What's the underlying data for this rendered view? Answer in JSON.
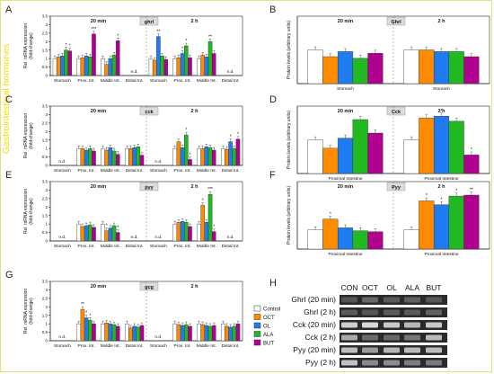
{
  "figure": {
    "side_title": "Gastrointestinal hormones",
    "side_title_color": "#f2dc00",
    "legend": [
      "Control",
      "OCT",
      "OL",
      "ALA",
      "BUT"
    ],
    "colors": [
      "#ffffff",
      "#ff8c00",
      "#1e7cf0",
      "#22b822",
      "#b0008f"
    ],
    "blot": {
      "letter": "H",
      "columns": [
        "CON",
        "OCT",
        "OL",
        "ALA",
        "BUT"
      ],
      "rows": [
        "Ghrl (20 min)",
        "Ghrl (2 h)",
        "Cck (20 min)",
        "Cck (2 h)",
        "Pyy (20 min)",
        "Pyy (2 h)"
      ]
    }
  },
  "chart_data": [
    {
      "panel": "A",
      "type": "bar",
      "gene": "ghrl",
      "ylabel": "Rel. mRNA expression\n(fold-change)",
      "ylim": [
        0,
        3.5
      ],
      "ticks": [
        0,
        0.5,
        1,
        1.5,
        2,
        2.5,
        3,
        3.5
      ],
      "time_labels": [
        "20 min",
        "2 h"
      ],
      "categories": [
        "Stomach",
        "Prox. Int.",
        "Middle Int.",
        "Distal Int.",
        "Stomach",
        "Prox. Int.",
        "Middle Int.",
        "Distal Int."
      ],
      "series": [
        {
          "name": "Control",
          "values": [
            1,
            1,
            1,
            null,
            1,
            1,
            1,
            null
          ]
        },
        {
          "name": "OCT",
          "values": [
            1.1,
            1.05,
            0.65,
            null,
            0.9,
            1.05,
            1.2,
            null
          ]
        },
        {
          "name": "OL",
          "values": [
            1.15,
            1.15,
            1.0,
            null,
            2.3,
            1.3,
            1.1,
            null
          ]
        },
        {
          "name": "ALA",
          "values": [
            1.5,
            1.1,
            1.2,
            null,
            1.15,
            1.75,
            2.0,
            null
          ]
        },
        {
          "name": "BUT",
          "values": [
            1.45,
            2.45,
            2.05,
            null,
            0.95,
            1.05,
            1.3,
            null
          ]
        }
      ],
      "nd": [
        "n.d.",
        "n.d."
      ],
      "marks": [
        {
          "i": 0,
          "s": 3,
          "text": "*"
        },
        {
          "i": 0,
          "s": 4,
          "text": "*"
        },
        {
          "i": 1,
          "s": 4,
          "text": "***"
        },
        {
          "i": 2,
          "s": 4,
          "text": "*"
        },
        {
          "i": 4,
          "s": 2,
          "text": "**"
        },
        {
          "i": 5,
          "s": 2,
          "text": "*"
        },
        {
          "i": 5,
          "s": 3,
          "text": "*"
        },
        {
          "i": 6,
          "s": 3,
          "text": "**"
        }
      ]
    },
    {
      "panel": "B",
      "type": "bar",
      "gene": "Ghrl",
      "ylabel": "Protein levels (arbitrary units)",
      "ylim": [
        0,
        2
      ],
      "ticks": [],
      "time_labels": [
        "20 min",
        "2 h"
      ],
      "categories": [
        "Stomach",
        "Stomach"
      ],
      "series": [
        {
          "name": "Control",
          "values": [
            1.0,
            1.0
          ]
        },
        {
          "name": "OCT",
          "values": [
            0.8,
            1.0
          ]
        },
        {
          "name": "OL",
          "values": [
            0.95,
            0.95
          ]
        },
        {
          "name": "ALA",
          "values": [
            0.75,
            0.95
          ]
        },
        {
          "name": "BUT",
          "values": [
            0.9,
            0.8
          ]
        }
      ],
      "nd": [],
      "marks": []
    },
    {
      "panel": "C",
      "type": "bar",
      "gene": "cck",
      "ylabel": "Rel. mRNA expression\n(fold-change)",
      "ylim": [
        0,
        3.5
      ],
      "ticks": [
        0,
        0.5,
        1,
        1.5,
        2,
        2.5,
        3,
        3.5
      ],
      "time_labels": [
        "20 min",
        "2 h"
      ],
      "categories": [
        "Stomach",
        "Prox. Int.",
        "Middle Int.",
        "Distal Int.",
        "Stomach",
        "Prox. Int.",
        "Middle Int.",
        "Distal Int."
      ],
      "series": [
        {
          "name": "Control",
          "values": [
            null,
            1,
            1,
            1,
            null,
            1,
            1,
            1
          ]
        },
        {
          "name": "OCT",
          "values": [
            null,
            1.0,
            0.9,
            1.0,
            null,
            1.4,
            1.0,
            0.95
          ]
        },
        {
          "name": "OL",
          "values": [
            null,
            0.9,
            1.05,
            1.05,
            null,
            1.05,
            1.1,
            1.4
          ]
        },
        {
          "name": "ALA",
          "values": [
            null,
            1.0,
            0.85,
            1.1,
            null,
            1.8,
            1.05,
            1.0
          ]
        },
        {
          "name": "BUT",
          "values": [
            null,
            0.85,
            0.65,
            0.6,
            null,
            0.35,
            0.9,
            1.55
          ]
        }
      ],
      "nd": [
        "n.d.",
        "n.d."
      ],
      "marks": [
        {
          "i": 5,
          "s": 3,
          "text": "*"
        },
        {
          "i": 5,
          "s": 4,
          "text": "*"
        },
        {
          "i": 7,
          "s": 2,
          "text": "*"
        },
        {
          "i": 7,
          "s": 4,
          "text": "*"
        }
      ]
    },
    {
      "panel": "D",
      "type": "bar",
      "gene": "Cck",
      "ylabel": "Protein levels (arbitrary units)",
      "ylim": [
        0,
        2
      ],
      "ticks": [],
      "time_labels": [
        "20 min",
        "2 h"
      ],
      "categories": [
        "Proximal Intestine",
        "Proximal Intestine"
      ],
      "series": [
        {
          "name": "Control",
          "values": [
            1.0,
            1.0
          ]
        },
        {
          "name": "OCT",
          "values": [
            0.75,
            1.65
          ]
        },
        {
          "name": "OL",
          "values": [
            1.05,
            1.7
          ]
        },
        {
          "name": "ALA",
          "values": [
            1.6,
            1.55
          ]
        },
        {
          "name": "BUT",
          "values": [
            1.2,
            0.55
          ]
        }
      ],
      "nd": [],
      "marks": [
        {
          "i": 1,
          "s": 2,
          "text": "*"
        },
        {
          "i": 1,
          "s": 4,
          "text": "*"
        }
      ]
    },
    {
      "panel": "E",
      "type": "bar",
      "gene": "pyy",
      "ylabel": "Rel. mRNA expression\n(fold-change)",
      "ylim": [
        0,
        3.5
      ],
      "ticks": [
        0,
        0.5,
        1,
        1.5,
        2,
        2.5,
        3,
        3.5
      ],
      "time_labels": [
        "20 min",
        "2 h"
      ],
      "categories": [
        "Stomach",
        "Prox. Int.",
        "Middle Int.",
        "Distal Int.",
        "Stomach",
        "Prox. Int.",
        "Middle Int.",
        "Distal Int."
      ],
      "series": [
        {
          "name": "Control",
          "values": [
            null,
            1,
            1,
            null,
            null,
            1,
            1,
            null
          ]
        },
        {
          "name": "OCT",
          "values": [
            null,
            0.85,
            0.6,
            null,
            null,
            1.1,
            2.1,
            null
          ]
        },
        {
          "name": "OL",
          "values": [
            null,
            0.9,
            0.75,
            null,
            null,
            1.15,
            1.1,
            null
          ]
        },
        {
          "name": "ALA",
          "values": [
            null,
            0.95,
            0.9,
            null,
            null,
            1.1,
            2.75,
            null
          ]
        },
        {
          "name": "BUT",
          "values": [
            null,
            0.8,
            0.5,
            null,
            null,
            0.85,
            0.55,
            null
          ]
        }
      ],
      "nd": [
        "n.d.",
        "n.d.",
        "n.d.",
        "n.d."
      ],
      "marks": [
        {
          "i": 2,
          "s": 1,
          "text": "*"
        },
        {
          "i": 2,
          "s": 4,
          "text": "*"
        },
        {
          "i": 6,
          "s": 1,
          "text": "*"
        },
        {
          "i": 6,
          "s": 3,
          "text": "***"
        },
        {
          "i": 6,
          "s": 4,
          "text": "*"
        }
      ]
    },
    {
      "panel": "F",
      "type": "bar",
      "gene": "Pyy",
      "ylabel": "Protein levels (arbitrary units)",
      "ylim": [
        0,
        3.5
      ],
      "ticks": [],
      "time_labels": [
        "20 min",
        "2 h"
      ],
      "categories": [
        "Proximal Intestine",
        "Proximal Intestine"
      ],
      "series": [
        {
          "name": "Control",
          "values": [
            1.0,
            1.0
          ]
        },
        {
          "name": "OCT",
          "values": [
            1.55,
            2.5
          ]
        },
        {
          "name": "OL",
          "values": [
            1.1,
            2.3
          ]
        },
        {
          "name": "ALA",
          "values": [
            0.95,
            2.75
          ]
        },
        {
          "name": "BUT",
          "values": [
            0.9,
            2.8
          ]
        }
      ],
      "nd": [],
      "marks": [
        {
          "i": 0,
          "s": 1,
          "text": "*"
        },
        {
          "i": 1,
          "s": 1,
          "text": "*"
        },
        {
          "i": 1,
          "s": 2,
          "text": "*"
        },
        {
          "i": 1,
          "s": 3,
          "text": "*"
        },
        {
          "i": 1,
          "s": 4,
          "text": "**"
        }
      ]
    },
    {
      "panel": "G",
      "type": "bar",
      "gene": "gcg",
      "ylabel": "Rel. mRNA expression\n(fold-change)",
      "ylim": [
        0,
        3.5
      ],
      "ticks": [
        0,
        0.5,
        1,
        1.5,
        2,
        2.5,
        3,
        3.5
      ],
      "time_labels": [
        "20 min",
        "2 h"
      ],
      "categories": [
        "Stomach",
        "Prox. Int.",
        "Middle Int.",
        "Distal Int.",
        "Stomach",
        "Prox. Int.",
        "Middle Int.",
        "Distal Int."
      ],
      "series": [
        {
          "name": "Control",
          "values": [
            null,
            1,
            1,
            1,
            null,
            1,
            1,
            1
          ]
        },
        {
          "name": "OCT",
          "values": [
            null,
            1.85,
            1.05,
            0.75,
            null,
            0.95,
            0.95,
            0.85
          ]
        },
        {
          "name": "OL",
          "values": [
            null,
            1.35,
            1.0,
            0.85,
            null,
            0.9,
            0.9,
            0.8
          ]
        },
        {
          "name": "ALA",
          "values": [
            null,
            1.2,
            0.95,
            0.8,
            null,
            0.95,
            0.85,
            0.85
          ]
        },
        {
          "name": "BUT",
          "values": [
            null,
            1.0,
            0.85,
            0.9,
            null,
            0.85,
            0.9,
            1.0
          ]
        }
      ],
      "nd": [
        "n.d.",
        "n.d."
      ],
      "marks": [
        {
          "i": 1,
          "s": 1,
          "text": "**"
        },
        {
          "i": 1,
          "s": 2,
          "text": "*"
        },
        {
          "i": 1,
          "s": 3,
          "text": "*"
        }
      ]
    }
  ]
}
